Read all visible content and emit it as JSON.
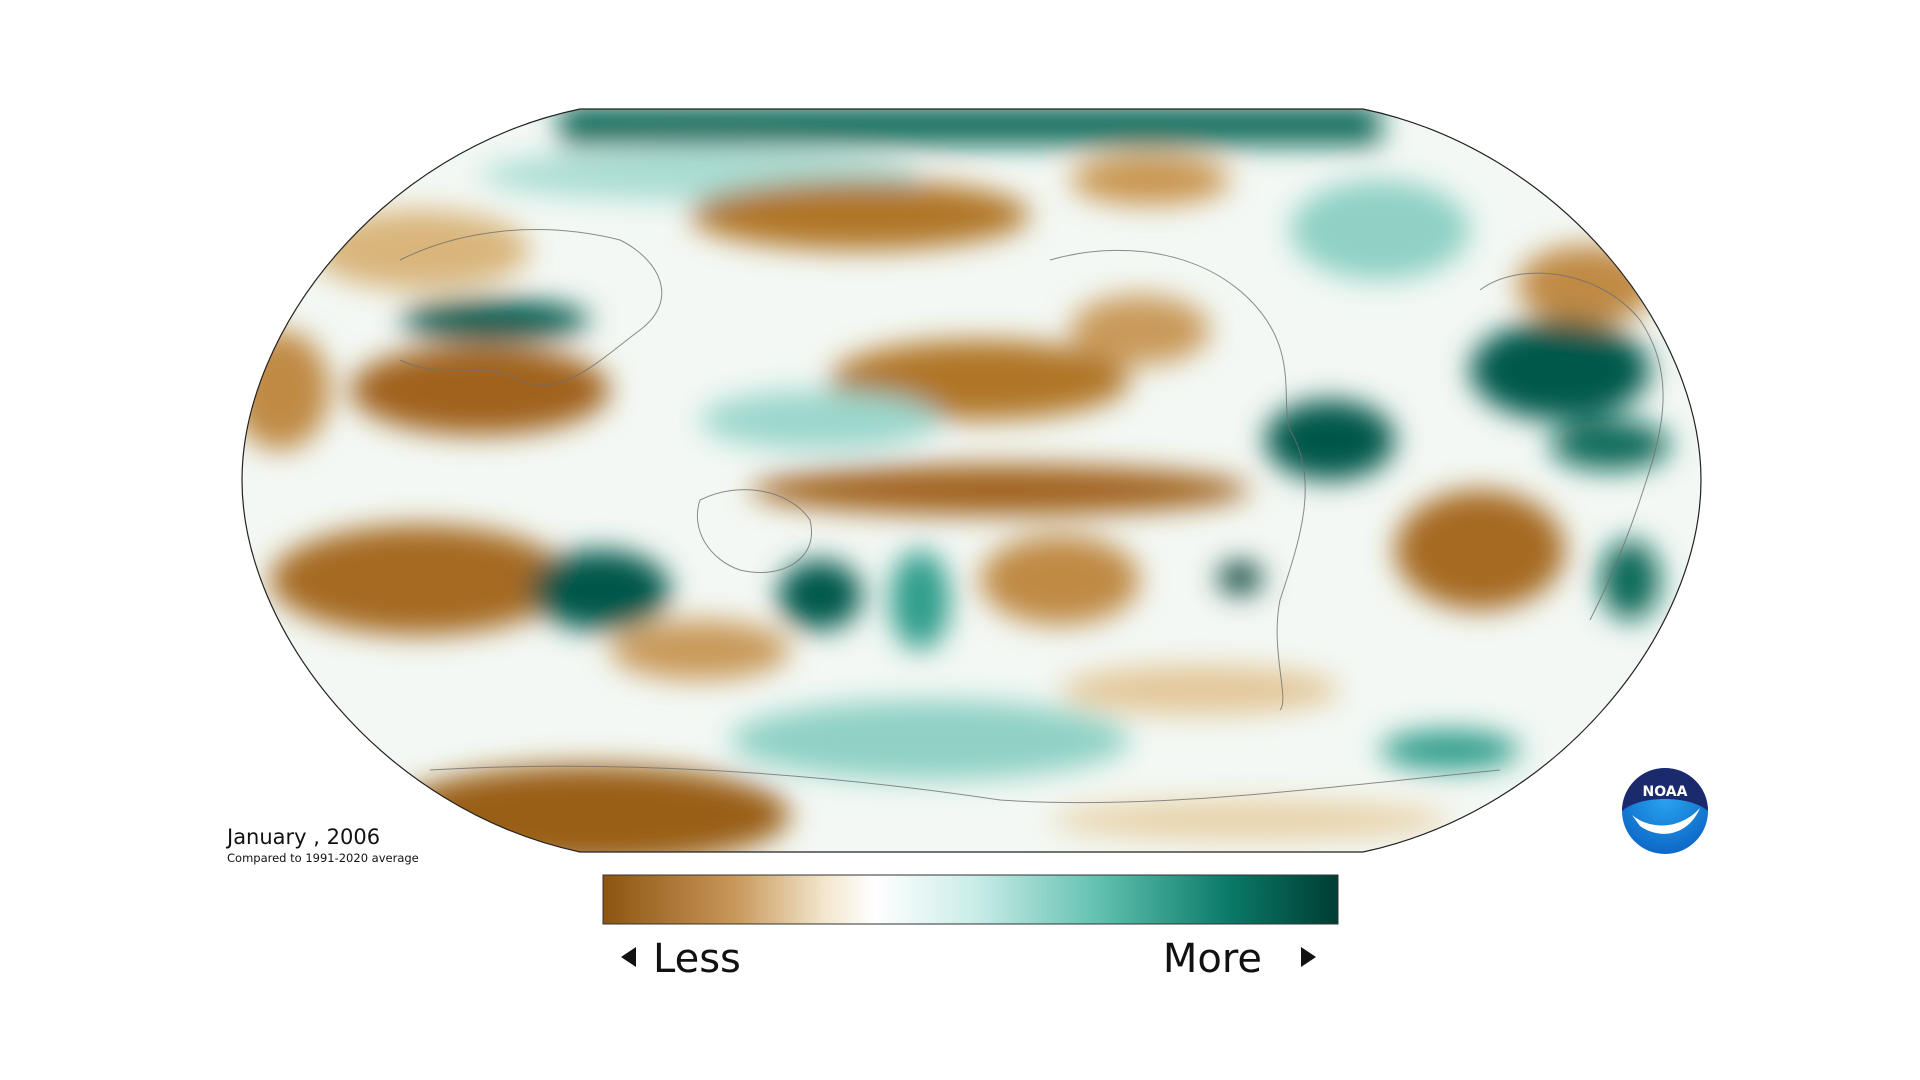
{
  "map": {
    "date": "January , 2006",
    "subtitle": "Compared to 1991-2020 average"
  },
  "legend": {
    "low": "Less",
    "high": "More"
  },
  "logo": "NOAA"
}
